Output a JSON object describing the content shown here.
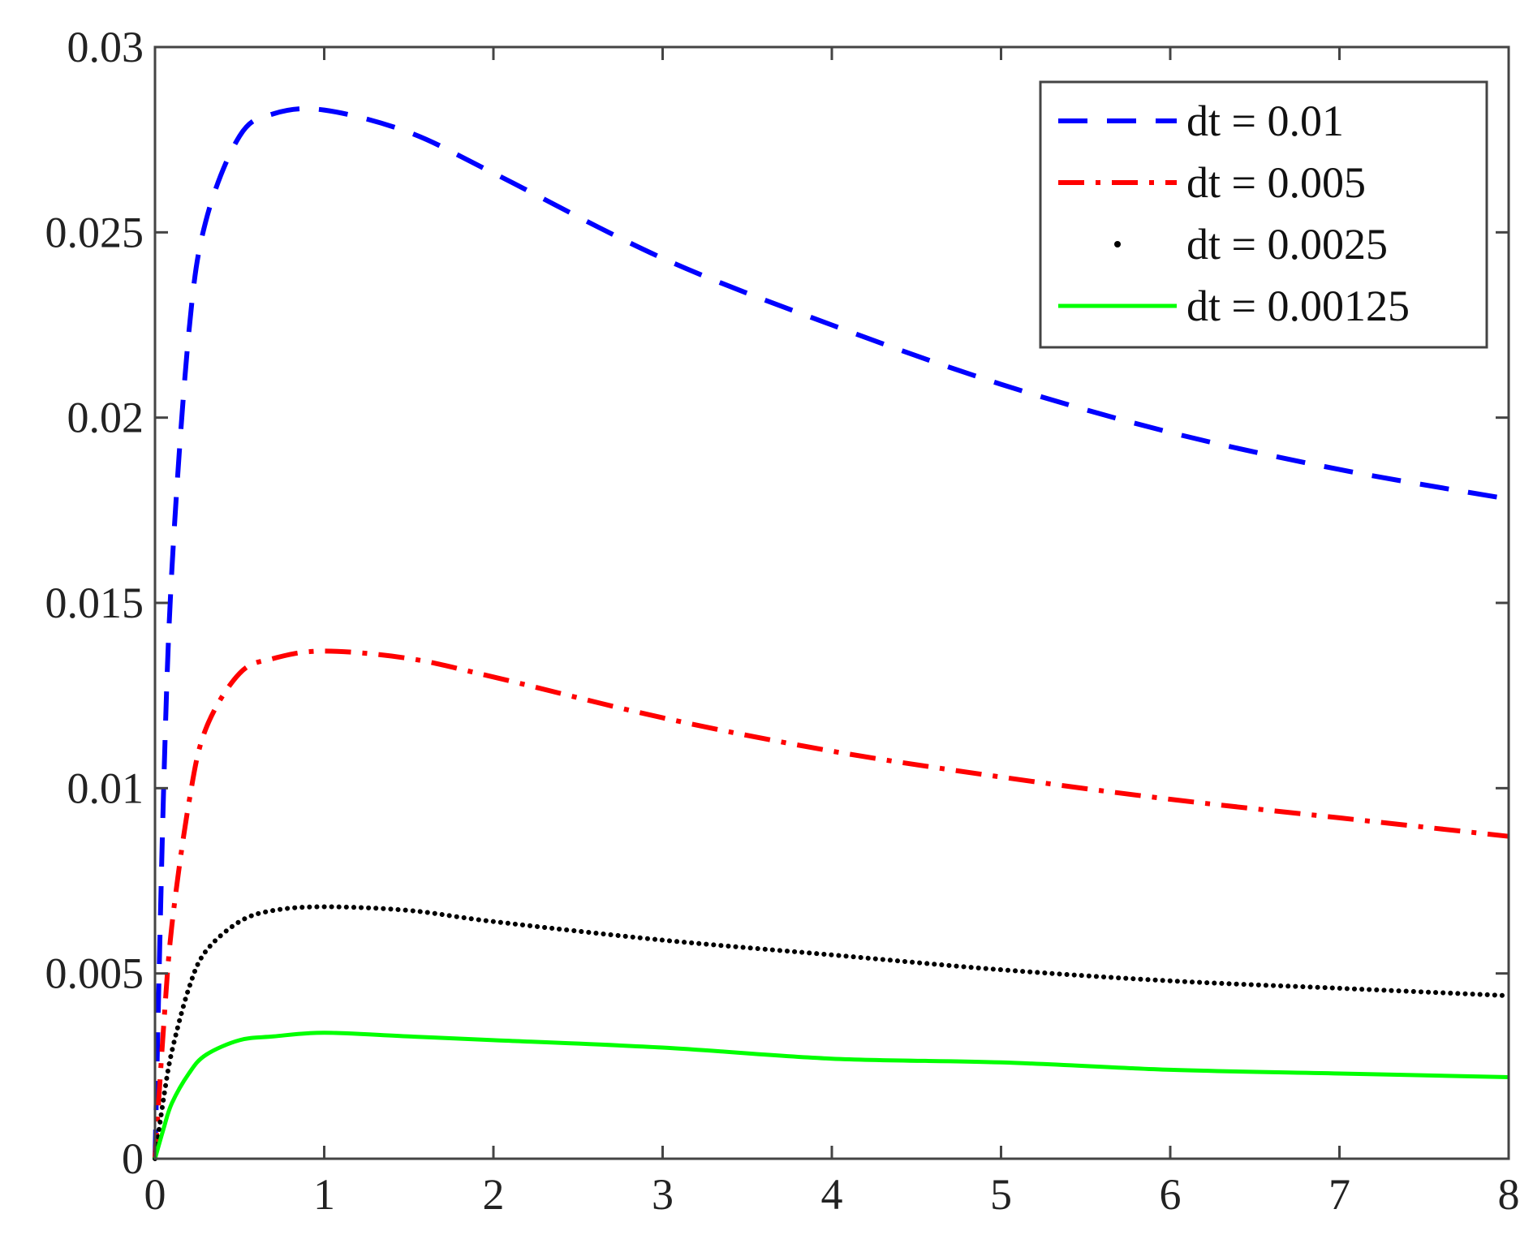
{
  "chart_data": {
    "type": "line",
    "title": "",
    "xlabel": "",
    "ylabel": "",
    "xlim": [
      0,
      8
    ],
    "ylim": [
      0,
      0.03
    ],
    "x_ticks": [
      "0",
      "1",
      "2",
      "3",
      "4",
      "5",
      "6",
      "7",
      "8"
    ],
    "y_ticks": [
      "0",
      "0.005",
      "0.01",
      "0.015",
      "0.02",
      "0.025",
      "0.03"
    ],
    "grid": false,
    "legend_position": "top-right",
    "x": [
      0,
      0.05,
      0.1,
      0.2,
      0.3,
      0.5,
      0.7,
      1.0,
      1.5,
      2.0,
      3.0,
      4.0,
      5.0,
      6.0,
      7.0,
      8.0
    ],
    "series": [
      {
        "name": "dt = 0.01",
        "style": "dashed",
        "color": "#0000ff",
        "values": [
          0,
          0.0098,
          0.0159,
          0.0223,
          0.0253,
          0.0276,
          0.0282,
          0.0283,
          0.0277,
          0.0266,
          0.0243,
          0.0225,
          0.0209,
          0.0196,
          0.0186,
          0.0178
        ]
      },
      {
        "name": "dt = 0.005",
        "style": "dashdot",
        "color": "#ff0000",
        "values": [
          0,
          0.0035,
          0.0063,
          0.0096,
          0.0116,
          0.0131,
          0.0135,
          0.0137,
          0.0135,
          0.013,
          0.0119,
          0.011,
          0.0103,
          0.0097,
          0.0092,
          0.0087
        ]
      },
      {
        "name": "dt = 0.0025",
        "style": "dotted",
        "color": "#000000",
        "values": [
          0,
          0.0016,
          0.0029,
          0.0046,
          0.0056,
          0.0064,
          0.0067,
          0.0068,
          0.0067,
          0.0064,
          0.0059,
          0.0055,
          0.0051,
          0.0048,
          0.0046,
          0.0044
        ]
      },
      {
        "name": "dt = 0.00125",
        "style": "solid",
        "color": "#00ff00",
        "values": [
          0,
          0.0008,
          0.0015,
          0.0023,
          0.0028,
          0.0032,
          0.0033,
          0.0034,
          0.0033,
          0.0032,
          0.003,
          0.0027,
          0.0026,
          0.0024,
          0.0023,
          0.0022
        ]
      }
    ]
  }
}
